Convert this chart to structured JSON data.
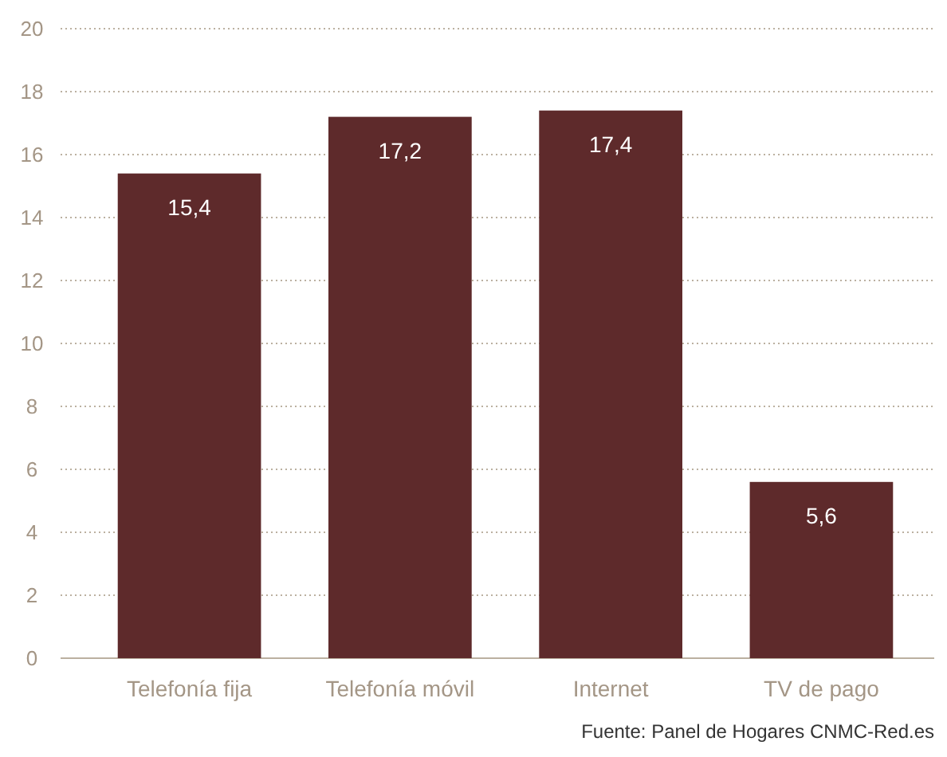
{
  "chart_data": {
    "type": "bar",
    "categories": [
      "Telefonía fija",
      "Telefonía móvil",
      "Internet",
      "TV de pago"
    ],
    "values": [
      15.4,
      17.2,
      17.4,
      5.6
    ],
    "value_labels": [
      "15,4",
      "17,2",
      "17,4",
      "5,6"
    ],
    "color": "#5e2a2b",
    "ylim": [
      0,
      20
    ],
    "yticks": [
      0,
      2,
      4,
      6,
      8,
      10,
      12,
      14,
      16,
      18,
      20
    ],
    "grid": "y",
    "annotations": [
      "Fuente: Panel de Hogares CNMC-Red.es"
    ]
  }
}
